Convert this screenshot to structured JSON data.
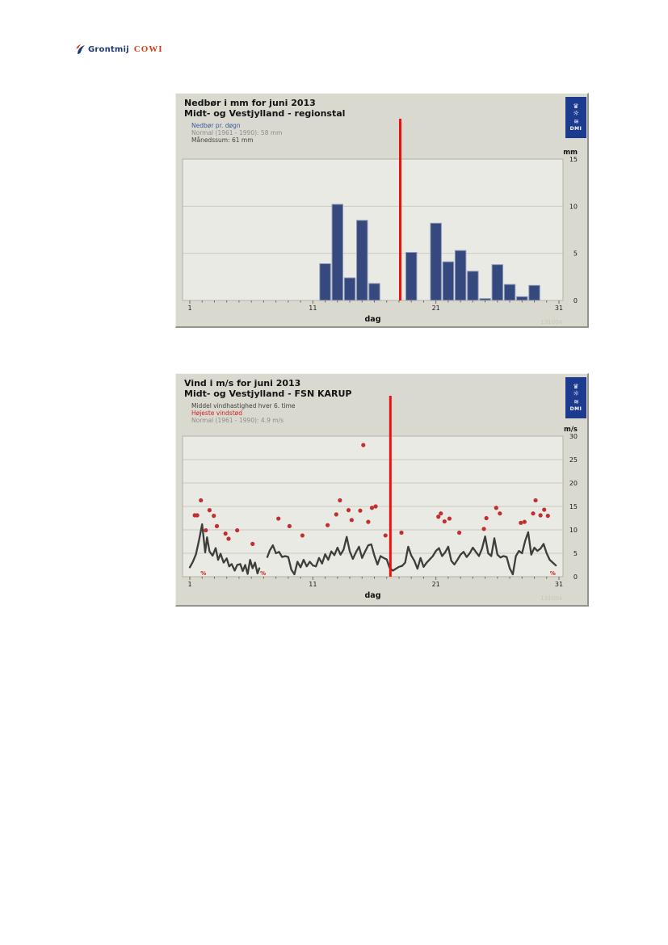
{
  "logo": {
    "grontmij": "Grontmij",
    "cowi": "COWI"
  },
  "dmi": {
    "label": "DMI"
  },
  "chart_data": [
    {
      "type": "bar",
      "title": "Nedbør i mm for juni 2013",
      "subtitle": "Midt- og Vestjylland - regionstal",
      "legend": [
        {
          "label": "Nedbør pr. døgn",
          "color": "#3d5aa1"
        },
        {
          "label": "Normal (1961 - 1990): 58 mm",
          "color": "#8e8e87"
        },
        {
          "label": "Månedssum: 61 mm",
          "color": "#43433d"
        }
      ],
      "xlabel": "dag",
      "ylabel": "mm",
      "xlim": [
        1,
        31
      ],
      "ylim": [
        0,
        15
      ],
      "x_ticks": [
        1,
        11,
        21,
        31
      ],
      "y_ticks": [
        0,
        5,
        10,
        15
      ],
      "grid": true,
      "bar_color": "#35497e",
      "bar_edge_color": "#8a97b8",
      "marker_line_day": 18.1,
      "marker_line_color": "#ee1010",
      "watermark": "131004",
      "bars": [
        [
          12,
          3.9
        ],
        [
          13,
          10.2
        ],
        [
          14,
          2.4
        ],
        [
          15,
          8.5
        ],
        [
          16,
          1.8
        ],
        [
          19,
          5.1
        ],
        [
          21,
          8.2
        ],
        [
          22,
          4.1
        ],
        [
          23,
          5.3
        ],
        [
          24,
          3.1
        ],
        [
          25,
          0.2
        ],
        [
          26,
          3.8
        ],
        [
          27,
          1.7
        ],
        [
          28,
          0.4
        ],
        [
          29,
          1.6
        ]
      ]
    },
    {
      "type": "line",
      "title": "Vind i m/s for juni 2013",
      "subtitle": "Midt- og Vestjylland - FSN KARUP",
      "legend": [
        {
          "label": "Middel vindhastighed hver 6. time",
          "color": "#43433d"
        },
        {
          "label": "Højeste vindstød",
          "color": "#cc2424"
        },
        {
          "label": "Normal (1961 - 1990): 4.9 m/s",
          "color": "#8e8e87"
        }
      ],
      "xlabel": "dag",
      "ylabel": "m/s",
      "xlim": [
        1,
        31
      ],
      "ylim": [
        0,
        30
      ],
      "x_ticks": [
        1,
        11,
        21,
        31
      ],
      "y_ticks": [
        0,
        5,
        10,
        15,
        20,
        25,
        30
      ],
      "grid": true,
      "line_color": "#3d3d3a",
      "dot_color": "#c13030",
      "marker_line_day": 17.3,
      "marker_line_color": "#ee1010",
      "missing_symbol": "%",
      "missing_marks": [
        2.1,
        6.95,
        30.5
      ],
      "watermark": "131004",
      "mean_wind": [
        [
          1.0,
          2.0
        ],
        [
          1.25,
          3.2
        ],
        [
          1.5,
          4.8
        ],
        [
          1.75,
          7.8
        ],
        [
          2.0,
          11.2
        ],
        [
          2.25,
          5.2
        ],
        [
          2.4,
          8.4
        ],
        [
          2.6,
          5.4
        ],
        [
          2.85,
          4.5
        ],
        [
          3.1,
          6.1
        ],
        [
          3.3,
          3.6
        ],
        [
          3.5,
          4.9
        ],
        [
          3.75,
          3.0
        ],
        [
          4.0,
          3.9
        ],
        [
          4.2,
          2.2
        ],
        [
          4.4,
          2.7
        ],
        [
          4.65,
          1.3
        ],
        [
          4.85,
          2.5
        ],
        [
          5.1,
          2.7
        ],
        [
          5.3,
          1.2
        ],
        [
          5.5,
          2.5
        ],
        [
          5.7,
          0.6
        ],
        [
          5.9,
          3.6
        ],
        [
          6.1,
          1.8
        ],
        [
          6.3,
          3.0
        ],
        [
          6.5,
          0.7
        ],
        [
          6.65,
          1.8
        ],
        null,
        [
          7.3,
          4.2
        ],
        [
          7.5,
          5.6
        ],
        [
          7.75,
          6.7
        ],
        [
          8.0,
          5.0
        ],
        [
          8.25,
          5.3
        ],
        [
          8.5,
          4.2
        ],
        [
          8.75,
          4.4
        ],
        [
          9.0,
          4.2
        ],
        [
          9.25,
          1.5
        ],
        [
          9.5,
          0.5
        ],
        [
          9.75,
          3.2
        ],
        [
          10.0,
          2.0
        ],
        [
          10.25,
          3.6
        ],
        [
          10.5,
          2.2
        ],
        [
          10.75,
          3.2
        ],
        [
          11.0,
          2.4
        ],
        [
          11.25,
          2.2
        ],
        [
          11.5,
          4.0
        ],
        [
          11.75,
          2.8
        ],
        [
          12.0,
          4.8
        ],
        [
          12.25,
          3.6
        ],
        [
          12.5,
          5.4
        ],
        [
          12.75,
          4.6
        ],
        [
          13.0,
          6.2
        ],
        [
          13.25,
          4.7
        ],
        [
          13.5,
          5.8
        ],
        [
          13.75,
          8.5
        ],
        [
          14.0,
          5.4
        ],
        [
          14.25,
          3.8
        ],
        [
          14.5,
          5.2
        ],
        [
          14.75,
          6.4
        ],
        [
          15.0,
          4.0
        ],
        [
          15.25,
          5.4
        ],
        [
          15.5,
          6.7
        ],
        [
          15.75,
          6.9
        ],
        [
          16.0,
          4.5
        ],
        [
          16.25,
          2.6
        ],
        [
          16.5,
          4.4
        ],
        [
          16.75,
          4.0
        ],
        [
          17.0,
          3.7
        ],
        [
          17.25,
          1.8
        ],
        [
          17.5,
          1.3
        ],
        [
          17.75,
          1.7
        ],
        [
          18.0,
          2.1
        ],
        [
          18.25,
          2.3
        ],
        [
          18.5,
          3.0
        ],
        [
          18.75,
          6.4
        ],
        [
          19.0,
          4.5
        ],
        [
          19.25,
          3.4
        ],
        [
          19.5,
          1.7
        ],
        [
          19.75,
          4.0
        ],
        [
          20.0,
          2.1
        ],
        [
          20.25,
          3.0
        ],
        [
          20.5,
          3.7
        ],
        [
          20.75,
          4.4
        ],
        [
          21.0,
          5.5
        ],
        [
          21.25,
          6.1
        ],
        [
          21.5,
          4.4
        ],
        [
          21.75,
          5.2
        ],
        [
          22.0,
          6.4
        ],
        [
          22.25,
          3.4
        ],
        [
          22.5,
          2.6
        ],
        [
          22.75,
          3.6
        ],
        [
          23.0,
          4.7
        ],
        [
          23.25,
          5.3
        ],
        [
          23.5,
          4.2
        ],
        [
          23.75,
          5.0
        ],
        [
          24.0,
          6.2
        ],
        [
          24.25,
          5.3
        ],
        [
          24.5,
          4.4
        ],
        [
          24.75,
          6.0
        ],
        [
          25.0,
          8.6
        ],
        [
          25.25,
          5.0
        ],
        [
          25.5,
          4.4
        ],
        [
          25.75,
          8.2
        ],
        [
          26.0,
          4.7
        ],
        [
          26.25,
          4.1
        ],
        [
          26.5,
          4.4
        ],
        [
          26.75,
          4.2
        ],
        [
          27.0,
          1.8
        ],
        [
          27.25,
          0.5
        ],
        [
          27.5,
          4.4
        ],
        [
          27.75,
          5.5
        ],
        [
          28.0,
          5.0
        ],
        [
          28.25,
          7.6
        ],
        [
          28.5,
          9.5
        ],
        [
          28.75,
          4.7
        ],
        [
          29.0,
          6.2
        ],
        [
          29.25,
          5.5
        ],
        [
          29.5,
          6.0
        ],
        [
          29.75,
          7.0
        ],
        [
          30.0,
          5.0
        ],
        [
          30.25,
          3.6
        ],
        [
          30.5,
          3.0
        ],
        [
          30.75,
          2.4
        ]
      ],
      "gusts": [
        [
          1.4,
          13.1
        ],
        [
          1.6,
          13.1
        ],
        [
          1.9,
          16.3
        ],
        [
          2.3,
          9.9
        ],
        [
          2.6,
          14.2
        ],
        [
          2.95,
          13.0
        ],
        [
          3.2,
          10.8
        ],
        [
          3.9,
          9.2
        ],
        [
          4.15,
          8.1
        ],
        [
          4.85,
          9.9
        ],
        [
          6.1,
          7.0
        ],
        [
          8.2,
          12.4
        ],
        [
          9.1,
          10.8
        ],
        [
          10.15,
          8.8
        ],
        [
          12.2,
          11.0
        ],
        [
          12.9,
          13.3
        ],
        [
          13.2,
          16.3
        ],
        [
          13.9,
          14.2
        ],
        [
          14.15,
          12.1
        ],
        [
          14.85,
          14.1
        ],
        [
          15.1,
          28.1
        ],
        [
          15.5,
          11.7
        ],
        [
          15.8,
          14.7
        ],
        [
          16.1,
          15.0
        ],
        [
          16.9,
          8.8
        ],
        [
          18.2,
          9.4
        ],
        [
          21.2,
          12.8
        ],
        [
          21.4,
          13.5
        ],
        [
          21.7,
          11.8
        ],
        [
          22.1,
          12.4
        ],
        [
          22.9,
          9.4
        ],
        [
          24.9,
          10.2
        ],
        [
          25.1,
          12.5
        ],
        [
          25.9,
          14.7
        ],
        [
          26.2,
          13.5
        ],
        [
          27.9,
          11.5
        ],
        [
          28.2,
          11.7
        ],
        [
          28.9,
          13.5
        ],
        [
          29.1,
          16.3
        ],
        [
          29.5,
          13.1
        ],
        [
          29.8,
          14.3
        ],
        [
          30.1,
          13.0
        ]
      ]
    }
  ]
}
